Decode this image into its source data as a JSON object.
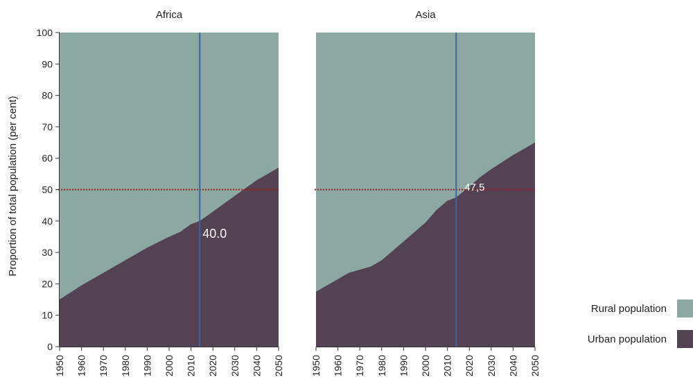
{
  "chart_data": {
    "type": "area",
    "ylabel": "Proportion of total population (per cent)",
    "ylim": [
      0,
      100
    ],
    "yticks": [
      0,
      10,
      20,
      30,
      40,
      50,
      60,
      70,
      80,
      90,
      100
    ],
    "xlim": [
      1950,
      2050
    ],
    "xticks": [
      "1950",
      "1960",
      "1970",
      "1980",
      "1990",
      "2000",
      "2010",
      "2020",
      "2030",
      "2040",
      "2050"
    ],
    "reference_line_y": 50,
    "current_year": 2014,
    "colors": {
      "rural": "#8ba9a1",
      "urban": "#534251",
      "vline": "#3c62a8",
      "ref": "#a01c1c"
    },
    "legend": [
      {
        "key": "rural",
        "label": "Rural population"
      },
      {
        "key": "urban",
        "label": "Urban population"
      }
    ],
    "panels": [
      {
        "title": "Africa",
        "annotation": "40.0",
        "x": [
          1950,
          1960,
          1970,
          1980,
          1990,
          2000,
          2005,
          2010,
          2014,
          2020,
          2030,
          2040,
          2050
        ],
        "urban": [
          15,
          19.5,
          23.5,
          27.5,
          31.5,
          35,
          36.5,
          39,
          40,
          43,
          48,
          53,
          57
        ]
      },
      {
        "title": "Asia",
        "annotation": "47,5",
        "x": [
          1950,
          1955,
          1960,
          1965,
          1970,
          1975,
          1980,
          1985,
          1990,
          1995,
          2000,
          2005,
          2010,
          2014,
          2020,
          2025,
          2030,
          2040,
          2050
        ],
        "urban": [
          17.5,
          19.5,
          21.5,
          23.5,
          24.5,
          25.5,
          27.5,
          30.5,
          33.5,
          36.5,
          39.5,
          43.5,
          46.5,
          47.5,
          51,
          54,
          56.5,
          61,
          65
        ]
      }
    ]
  }
}
